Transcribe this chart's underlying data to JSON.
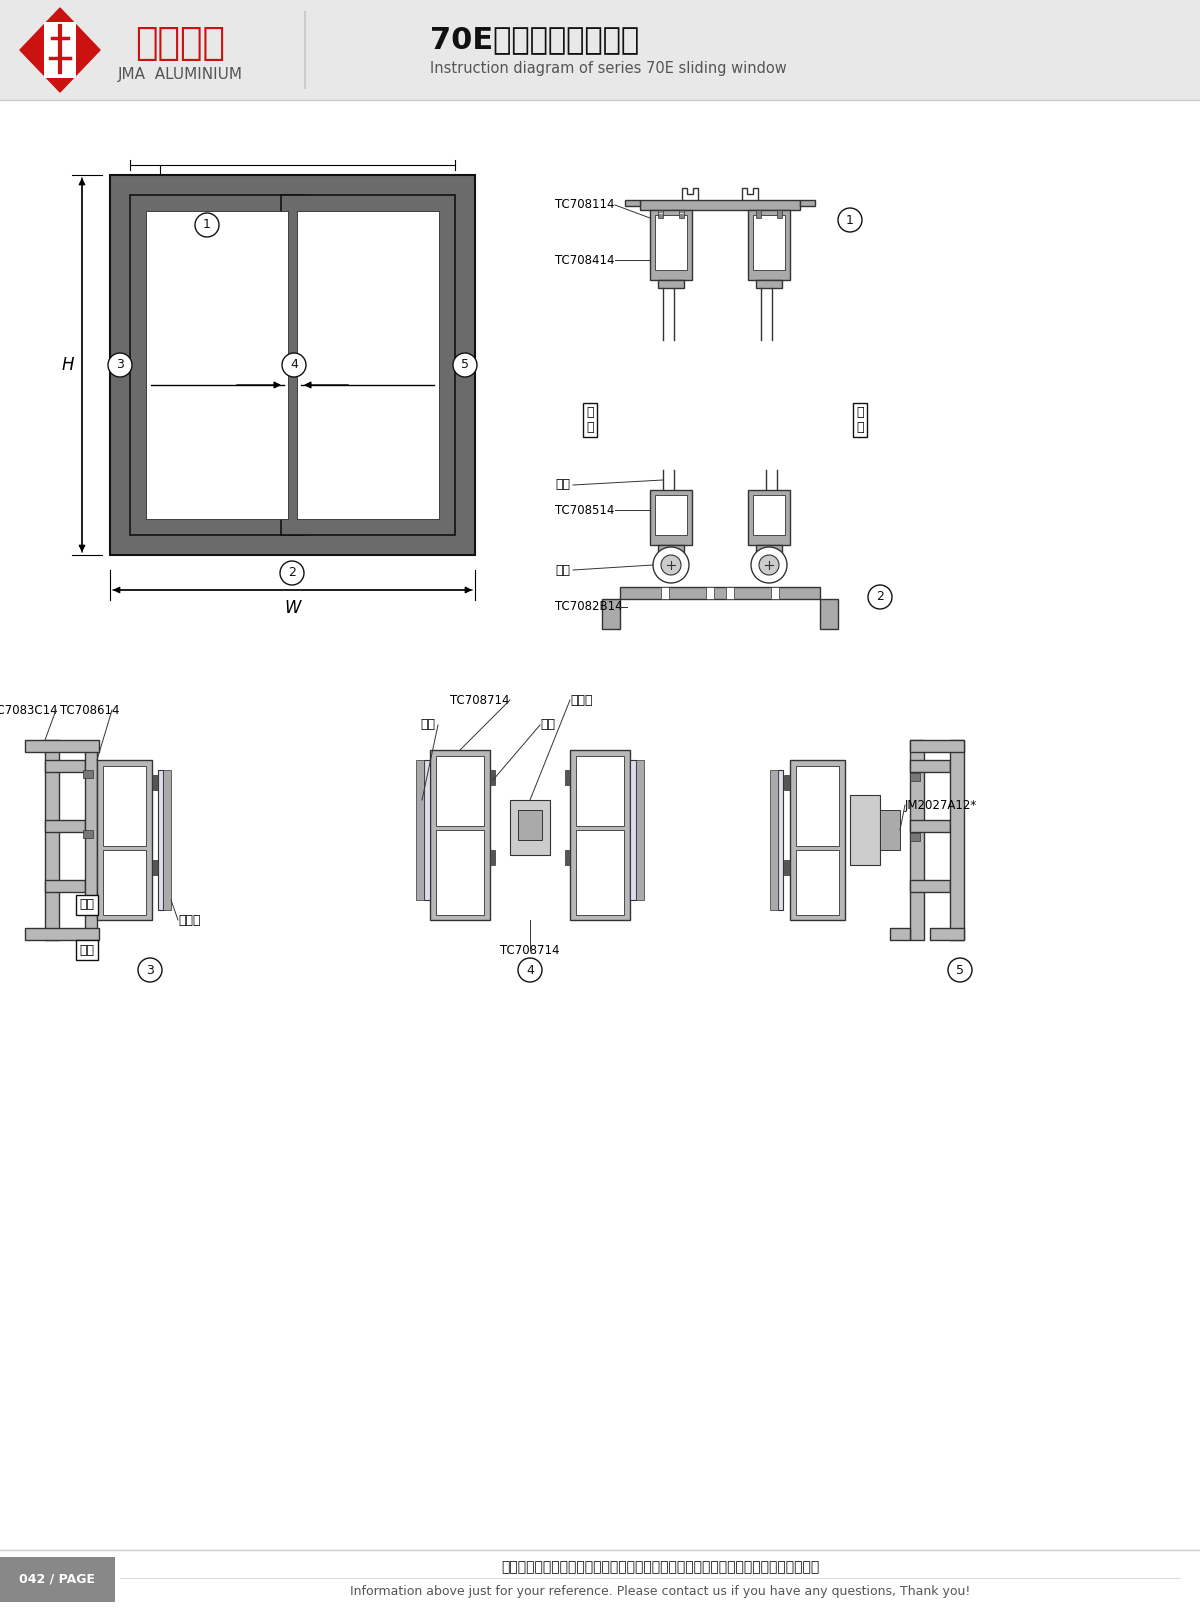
{
  "title_cn": "70E系列推拉窗结构图",
  "title_en": "Instruction diagram of series 70E sliding window",
  "company_cn": "坚美铝业",
  "company_en": "JMA ALUMINIUM",
  "page": "042 / PAGE",
  "footer_cn": "图中所示型材截面、装配、编号、尺寸及重量仅供参考。如有疑问，请向本公司查询。",
  "footer_en": "Information above just for your reference. Please contact us if you have any questions, Thank you!",
  "frame_color": "#6b6b6b",
  "white": "#ffffff",
  "red": "#cc1111",
  "black": "#111111",
  "dark_gray": "#555555",
  "light_gray": "#cccccc",
  "header_bg": "#e8e8e8",
  "profile_fill": "#c8c8c8",
  "profile_edge": "#333333"
}
